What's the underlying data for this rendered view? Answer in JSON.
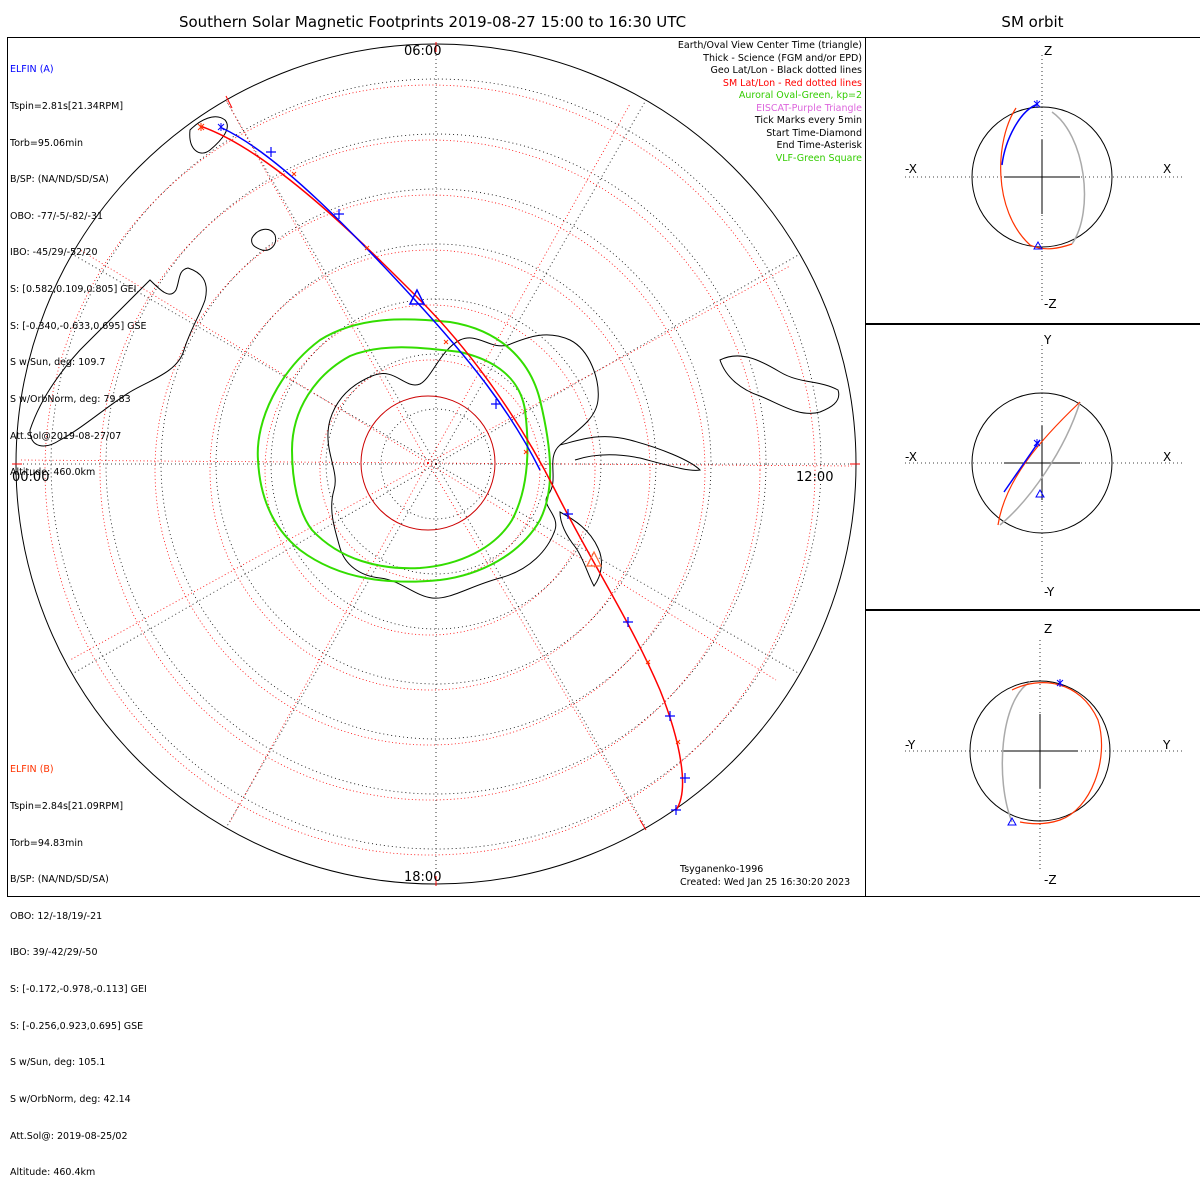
{
  "title": "Southern Solar Magnetic Footprints 2019-08-27 15:00 to 16:30 UTC",
  "right_title": "SM orbit",
  "clock_labels": {
    "top": "06:00",
    "left": "00:00",
    "right": "12:00",
    "bottom": "18:00"
  },
  "elfin_a": {
    "name": "ELFIN (A)",
    "color": "#0000ff",
    "lines": [
      "Tspin=2.81s[21.34RPM]",
      "Torb=95.06min",
      "B/SP: (NA/ND/SD/SA)",
      "OBO: -77/-5/-82/-31",
      "IBO: -45/29/-52/20",
      "S: [0.582,0.109,0.805] GEI",
      "S: [-0.340,-0.633,0.695] GSE",
      "S w/Sun, deg: 109.7",
      "S w/OrbNorm, deg: 79.83",
      "Att.Sol@2019-08-27/07",
      "Altitude: 460.0km"
    ]
  },
  "elfin_b": {
    "name": "ELFIN (B)",
    "color": "#ff3300",
    "lines": [
      "Tspin=2.84s[21.09RPM]",
      "Torb=94.83min",
      "B/SP: (NA/ND/SD/SA)",
      "OBO: 12/-18/19/-21",
      "IBO: 39/-42/29/-50",
      "S: [-0.172,-0.978,-0.113] GEI",
      "S: [-0.256,0.923,0.695] GSE",
      "S w/Sun, deg: 105.1",
      "S w/OrbNorm, deg: 42.14",
      "Att.Sol@: 2019-08-25/02",
      "Altitude: 460.4km"
    ]
  },
  "legend": [
    {
      "text": "Earth/Oval View Center Time (triangle)",
      "color": "#000000"
    },
    {
      "text": "Thick - Science (FGM and/or EPD)",
      "color": "#000000"
    },
    {
      "text": "Geo Lat/Lon - Black dotted lines",
      "color": "#000000"
    },
    {
      "text": "SM Lat/Lon - Red dotted lines",
      "color": "#ff0000"
    },
    {
      "text": "Auroral Oval-Green, kp=2",
      "color": "#33cc00"
    },
    {
      "text": "EISCAT-Purple Triangle",
      "color": "#dd66dd"
    },
    {
      "text": "Tick Marks every 5min",
      "color": "#000000"
    },
    {
      "text": "Start Time-Diamond",
      "color": "#000000"
    },
    {
      "text": "End Time-Asterisk",
      "color": "#000000"
    },
    {
      "text": "VLF-Green Square",
      "color": "#33cc00"
    }
  ],
  "footer": {
    "model": "Tsyganenko-1996",
    "created": "Created: Wed Jan 25 16:30:20 2023"
  },
  "panels": [
    {
      "top_label": "Z",
      "bottom_label": "-Z",
      "left_label": "-X",
      "right_label": "X"
    },
    {
      "top_label": "Y",
      "bottom_label": "-Y",
      "left_label": "-X",
      "right_label": "X"
    },
    {
      "top_label": "Z",
      "bottom_label": "-Z",
      "left_label": "-Y",
      "right_label": "Y"
    }
  ]
}
